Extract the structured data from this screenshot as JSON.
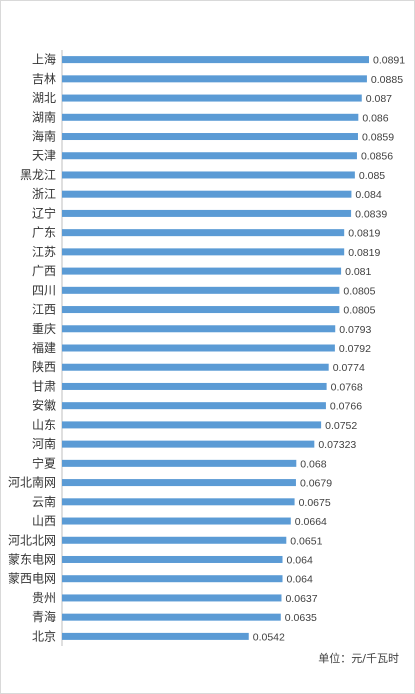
{
  "chart_data": {
    "type": "bar",
    "orientation": "horizontal",
    "categories": [
      "上海",
      "吉林",
      "湖北",
      "湖南",
      "海南",
      "天津",
      "黑龙江",
      "浙江",
      "辽宁",
      "广东",
      "江苏",
      "广西",
      "四川",
      "江西",
      "重庆",
      "福建",
      "陕西",
      "甘肃",
      "安徽",
      "山东",
      "河南",
      "宁夏",
      "河北南网",
      "云南",
      "山西",
      "河北北网",
      "蒙东电网",
      "蒙西电网",
      "贵州",
      "青海",
      "北京"
    ],
    "values": [
      0.0891,
      0.0885,
      0.087,
      0.086,
      0.0859,
      0.0856,
      0.085,
      0.084,
      0.0839,
      0.0819,
      0.0819,
      0.081,
      0.0805,
      0.0805,
      0.0793,
      0.0792,
      0.0774,
      0.0768,
      0.0766,
      0.0752,
      0.07323,
      0.068,
      0.0679,
      0.0675,
      0.0664,
      0.0651,
      0.064,
      0.064,
      0.0637,
      0.0635,
      0.0542
    ],
    "value_labels": [
      "0.0891",
      "0.0885",
      "0.087",
      "0.086",
      "0.0859",
      "0.0856",
      "0.085",
      "0.084",
      "0.0839",
      "0.0819",
      "0.0819",
      "0.081",
      "0.0805",
      "0.0805",
      "0.0793",
      "0.0792",
      "0.0774",
      "0.0768",
      "0.0766",
      "0.0752",
      "0.07323",
      "0.068",
      "0.0679",
      "0.0675",
      "0.0664",
      "0.0651",
      "0.064",
      "0.064",
      "0.0637",
      "0.0635",
      "0.0542"
    ],
    "xlim": [
      0,
      0.0891
    ],
    "grid": false,
    "bar_color": "#5b9bd5",
    "unit_note": "单位：元/千瓦时"
  }
}
